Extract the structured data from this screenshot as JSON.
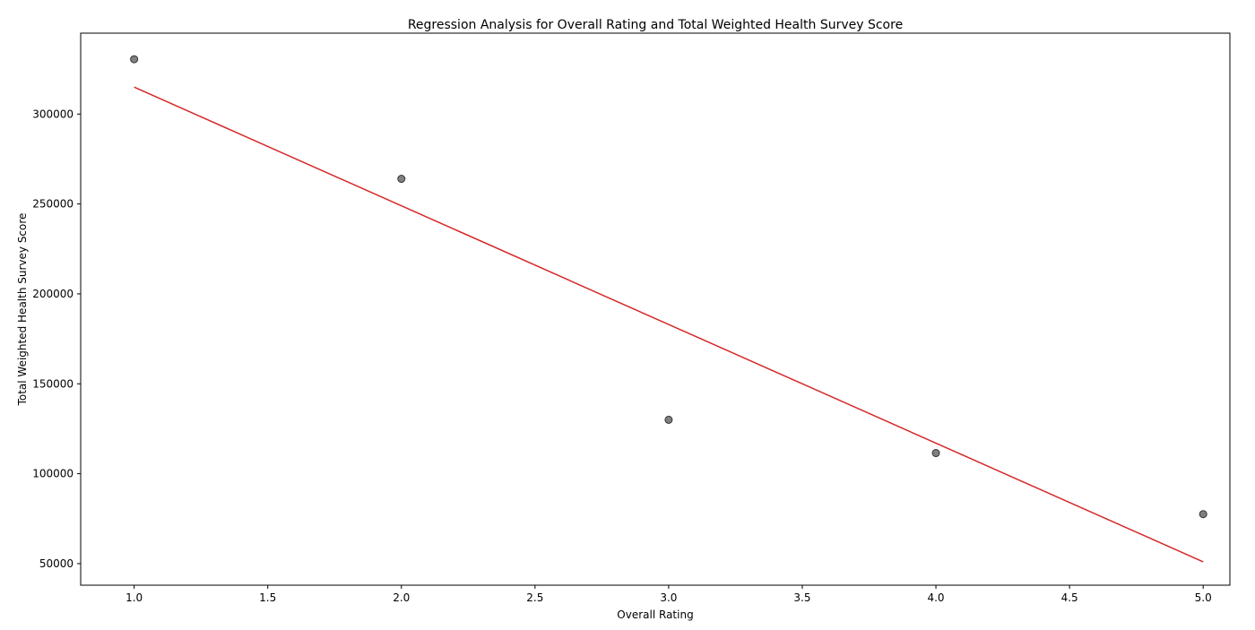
{
  "chart_data": {
    "type": "scatter",
    "title": "Regression Analysis for Overall Rating and Total Weighted Health Survey Score",
    "xlabel": "Overall Rating",
    "ylabel": "Total Weighted Health Survey Score",
    "xlim": [
      0.8,
      5.1
    ],
    "ylim": [
      38000,
      345000
    ],
    "x_ticks": [
      1.0,
      1.5,
      2.0,
      2.5,
      3.0,
      3.5,
      4.0,
      4.5,
      5.0
    ],
    "x_tick_labels": [
      "1.0",
      "1.5",
      "2.0",
      "2.5",
      "3.0",
      "3.5",
      "4.0",
      "4.5",
      "5.0"
    ],
    "y_ticks": [
      50000,
      100000,
      150000,
      200000,
      250000,
      300000
    ],
    "y_tick_labels": [
      "50000",
      "100000",
      "150000",
      "200000",
      "250000",
      "300000"
    ],
    "grid": false,
    "points": {
      "x": [
        1,
        2,
        3,
        4,
        5
      ],
      "y": [
        330500,
        264000,
        130000,
        111500,
        77500
      ],
      "color": "#808080",
      "edge_color": "#333333"
    },
    "regression_line": {
      "x": [
        1,
        5
      ],
      "y": [
        315000,
        51000
      ],
      "color": "#d62728"
    }
  }
}
